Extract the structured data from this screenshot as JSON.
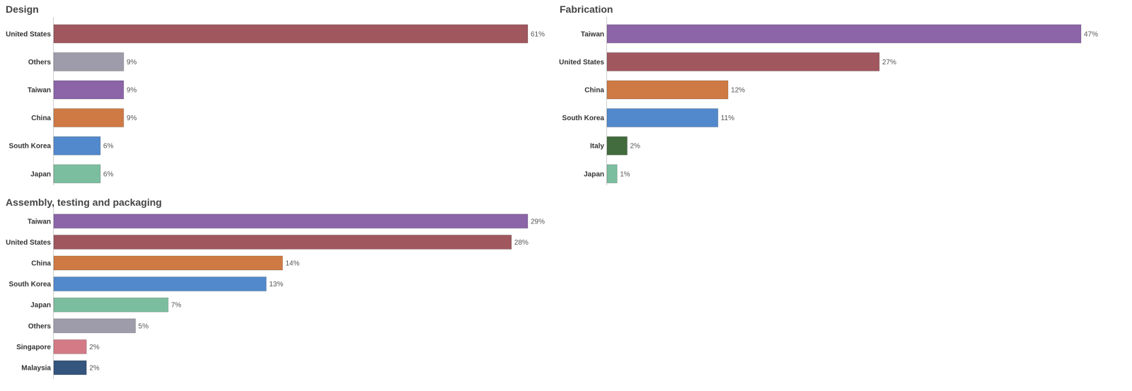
{
  "chart_data": [
    {
      "type": "bar",
      "orientation": "horizontal",
      "title": "Design",
      "categories": [
        "United States",
        "Others",
        "Taiwan",
        "China",
        "South Korea",
        "Japan"
      ],
      "values": [
        61,
        9,
        9,
        9,
        6,
        6
      ],
      "value_labels": [
        "61%",
        "9%",
        "9%",
        "9%",
        "6%",
        "6%"
      ],
      "colors": [
        "#a0575e",
        "#9e9caa",
        "#8b65a8",
        "#cf7a44",
        "#5289cc",
        "#7bbe9f"
      ],
      "xlim": [
        0,
        61
      ],
      "unit": "%",
      "grid": false,
      "legend": "none"
    },
    {
      "type": "bar",
      "orientation": "horizontal",
      "title": "Fabrication",
      "categories": [
        "Taiwan",
        "United States",
        "China",
        "South Korea",
        "Italy",
        "Japan"
      ],
      "values": [
        47,
        27,
        12,
        11,
        2,
        1
      ],
      "value_labels": [
        "47%",
        "27%",
        "12%",
        "11%",
        "2%",
        "1%"
      ],
      "colors": [
        "#8b65a8",
        "#a0575e",
        "#cf7a44",
        "#5289cc",
        "#426b3e",
        "#7bbe9f"
      ],
      "xlim": [
        0,
        47
      ],
      "unit": "%",
      "grid": false,
      "legend": "none"
    },
    {
      "type": "bar",
      "orientation": "horizontal",
      "title": "Assembly, testing and packaging",
      "categories": [
        "Taiwan",
        "United States",
        "China",
        "South Korea",
        "Japan",
        "Others",
        "Singapore",
        "Malaysia"
      ],
      "values": [
        29,
        28,
        14,
        13,
        7,
        5,
        2,
        2
      ],
      "value_labels": [
        "29%",
        "28%",
        "14%",
        "13%",
        "7%",
        "5%",
        "2%",
        "2%"
      ],
      "colors": [
        "#8b65a8",
        "#a0575e",
        "#cf7a44",
        "#5289cc",
        "#7bbe9f",
        "#9e9caa",
        "#d47a87",
        "#34557e"
      ],
      "xlim": [
        0,
        29
      ],
      "unit": "%",
      "grid": false,
      "legend": "none"
    }
  ]
}
